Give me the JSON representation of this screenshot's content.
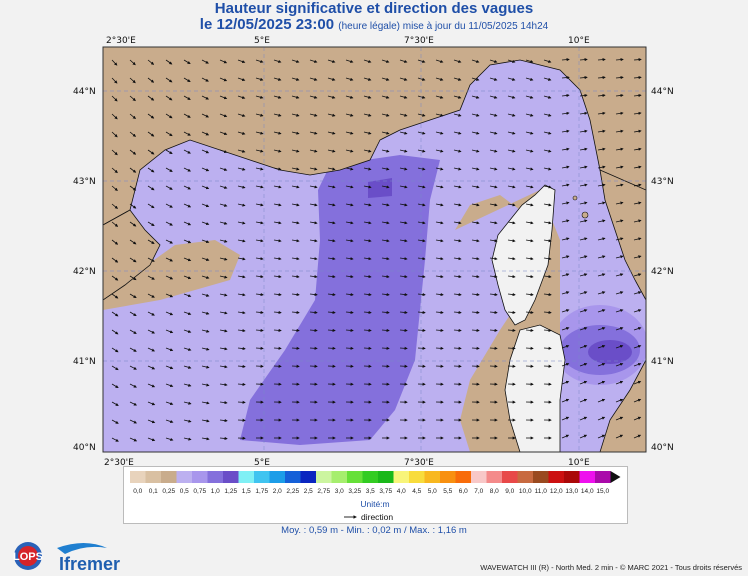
{
  "title": "Hauteur significative et direction des vagues",
  "subtitle": {
    "date": "le 12/05/2025 23:00",
    "note": "(heure légale) mise à jour du 11/05/2025 14h24"
  },
  "axes": {
    "lon_ticks": [
      "2°30'E",
      "5°E",
      "7°30'E",
      "10°E"
    ],
    "lat_ticks": [
      "44°N",
      "43°N",
      "42°N",
      "41°N",
      "40°N"
    ]
  },
  "legend": {
    "classes": [
      {
        "label": "0,0",
        "color": "#e8d3bc"
      },
      {
        "label": "0,1",
        "color": "#d9c0a2"
      },
      {
        "label": "0,25",
        "color": "#c9ac8c"
      },
      {
        "label": "0,5",
        "color": "#bcb0f0"
      },
      {
        "label": "0,75",
        "color": "#a896ec"
      },
      {
        "label": "1,0",
        "color": "#8470dc"
      },
      {
        "label": "1,25",
        "color": "#6a4ec8"
      },
      {
        "label": "1,5",
        "color": "#7ff0f5"
      },
      {
        "label": "1,75",
        "color": "#40c4f0"
      },
      {
        "label": "2,0",
        "color": "#1c9de8"
      },
      {
        "label": "2,25",
        "color": "#1560d8"
      },
      {
        "label": "2,5",
        "color": "#0a26c0"
      },
      {
        "label": "2,75",
        "color": "#ccf5a0"
      },
      {
        "label": "3,0",
        "color": "#a6ee6e"
      },
      {
        "label": "3,25",
        "color": "#66e038"
      },
      {
        "label": "3,5",
        "color": "#33cc22"
      },
      {
        "label": "3,75",
        "color": "#1ab81a"
      },
      {
        "label": "4,0",
        "color": "#f8f57a"
      },
      {
        "label": "4,5",
        "color": "#f8dc3c"
      },
      {
        "label": "5,0",
        "color": "#f8b820"
      },
      {
        "label": "5,5",
        "color": "#f89010"
      },
      {
        "label": "6,0",
        "color": "#f86c0a"
      },
      {
        "label": "7,0",
        "color": "#f8c8c8"
      },
      {
        "label": "8,0",
        "color": "#f48a8a"
      },
      {
        "label": "9,0",
        "color": "#e84848"
      },
      {
        "label": "10,0",
        "color": "#c86a40"
      },
      {
        "label": "11,0",
        "color": "#9a4a20"
      },
      {
        "label": "12,0",
        "color": "#cc1010"
      },
      {
        "label": "13,0",
        "color": "#aa0808"
      },
      {
        "label": "14,0",
        "color": "#ee10ee"
      },
      {
        "label": "15,0",
        "color": "#aa0aaa"
      }
    ],
    "unit": "Unité:m",
    "direction_label": "direction"
  },
  "stats": "Moy. : 0,59 m  -  Min. : 0,02 m / Max. : 1,16 m",
  "footer": "WAVEWATCH III (R) - North Med. 2 min - © MARC 2021 - Tous droits réservés",
  "logos": {
    "lops": "LOPS",
    "ifremer": "Ifremer"
  },
  "map_colors": {
    "sea_low": "#bcb0f0",
    "sea_mid": "#8470dc",
    "sea_high": "#6a4ec8",
    "land": "#c9ac8c",
    "coast": "#111111"
  }
}
